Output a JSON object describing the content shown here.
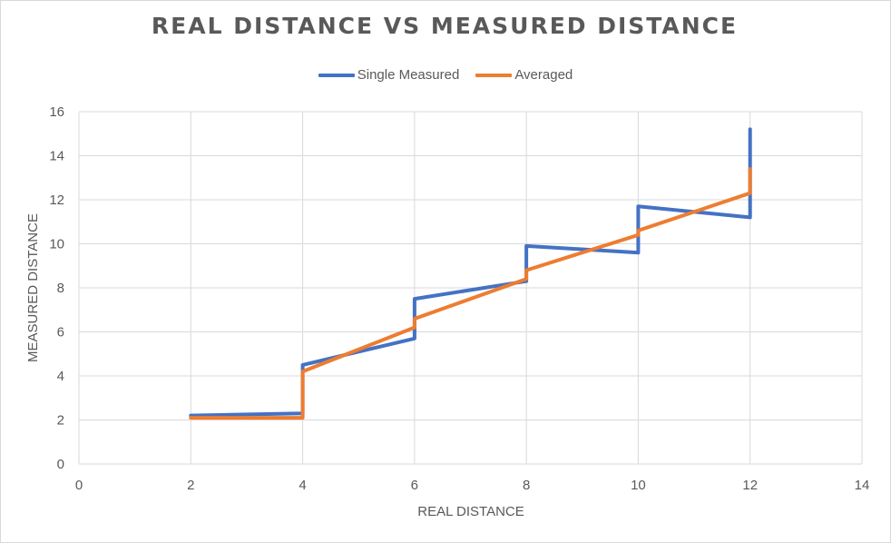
{
  "chart_data": {
    "type": "line",
    "title": "REAL DISTANCE VS MEASURED DISTANCE",
    "xlabel": "REAL DISTANCE",
    "ylabel": "MEASURED DISTANCE",
    "xlim": [
      0,
      14
    ],
    "ylim": [
      0,
      16
    ],
    "x_ticks": [
      0,
      2,
      4,
      6,
      8,
      10,
      12,
      14
    ],
    "y_ticks": [
      0,
      2,
      4,
      6,
      8,
      10,
      12,
      14,
      16
    ],
    "grid": true,
    "legend_position": "top",
    "series": [
      {
        "name": "Single Measured",
        "color": "#4472c4",
        "points": [
          [
            2,
            2.2
          ],
          [
            4,
            2.3
          ],
          [
            4,
            4.5
          ],
          [
            6,
            5.7
          ],
          [
            6,
            7.5
          ],
          [
            8,
            8.3
          ],
          [
            8,
            9.9
          ],
          [
            10,
            9.6
          ],
          [
            10,
            11.7
          ],
          [
            12,
            11.2
          ],
          [
            12,
            15.2
          ]
        ]
      },
      {
        "name": "Averaged",
        "color": "#ed7d31",
        "points": [
          [
            2,
            2.1
          ],
          [
            4,
            2.1
          ],
          [
            4,
            4.2
          ],
          [
            6,
            6.2
          ],
          [
            6,
            6.6
          ],
          [
            8,
            8.4
          ],
          [
            8,
            8.8
          ],
          [
            10,
            10.4
          ],
          [
            10,
            10.6
          ],
          [
            12,
            12.3
          ],
          [
            12,
            13.4
          ]
        ]
      }
    ]
  }
}
